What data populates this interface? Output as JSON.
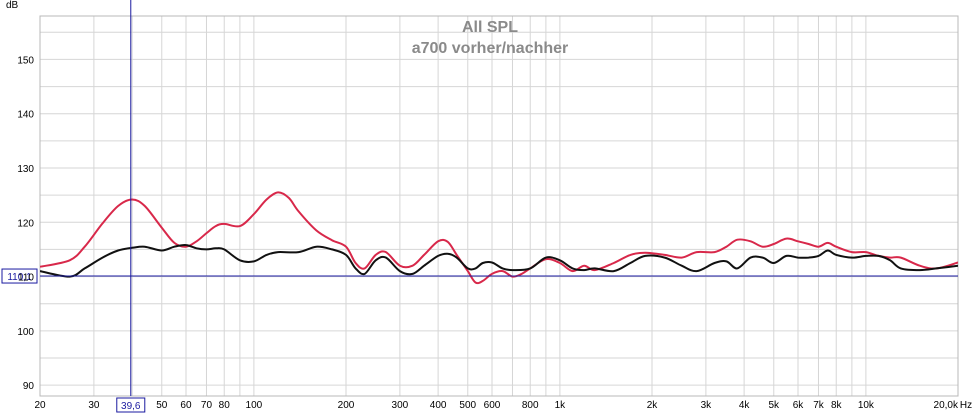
{
  "chart_data": {
    "type": "line",
    "title": "All SPL",
    "subtitle": "a700 vorher/nachher",
    "ylabel": "dB",
    "x_unit": "Hz",
    "x_scale": "log",
    "xlim": [
      20,
      20000
    ],
    "ylim": [
      88,
      158
    ],
    "grid": true,
    "legend": "none",
    "y_ticks": [
      90,
      100,
      110,
      120,
      130,
      140,
      150
    ],
    "x_ticks": [
      {
        "value": 20,
        "label": "20"
      },
      {
        "value": 30,
        "label": "30"
      },
      {
        "value": 50,
        "label": "50"
      },
      {
        "value": 60,
        "label": "60"
      },
      {
        "value": 70,
        "label": "70"
      },
      {
        "value": 80,
        "label": "80"
      },
      {
        "value": 100,
        "label": "100"
      },
      {
        "value": 200,
        "label": "200"
      },
      {
        "value": 300,
        "label": "300"
      },
      {
        "value": 400,
        "label": "400"
      },
      {
        "value": 500,
        "label": "500"
      },
      {
        "value": 600,
        "label": "600"
      },
      {
        "value": 800,
        "label": "800"
      },
      {
        "value": 1000,
        "label": "1k"
      },
      {
        "value": 2000,
        "label": "2k"
      },
      {
        "value": 3000,
        "label": "3k"
      },
      {
        "value": 4000,
        "label": "4k"
      },
      {
        "value": 5000,
        "label": "5k"
      },
      {
        "value": 6000,
        "label": "6k"
      },
      {
        "value": 7000,
        "label": "7k"
      },
      {
        "value": 8000,
        "label": "8k"
      },
      {
        "value": 10000,
        "label": "10k"
      },
      {
        "value": 20000,
        "label": "20,0k"
      }
    ],
    "cursor": {
      "x": 39.6,
      "x_label": "39,6",
      "y": 110.1,
      "y_label": "110,1",
      "color": "#1a1aa0"
    },
    "series": [
      {
        "color": "#d8284a",
        "x": [
          20,
          25,
          28,
          32,
          36,
          40,
          44,
          50,
          55,
          60,
          65,
          70,
          75,
          80,
          90,
          100,
          110,
          120,
          130,
          140,
          160,
          180,
          200,
          215,
          230,
          250,
          270,
          300,
          330,
          360,
          400,
          430,
          460,
          500,
          530,
          560,
          600,
          650,
          700,
          750,
          800,
          900,
          1000,
          1100,
          1200,
          1300,
          1500,
          1700,
          1900,
          2200,
          2500,
          2800,
          3200,
          3500,
          3800,
          4200,
          4600,
          5000,
          5500,
          6000,
          6500,
          7000,
          7500,
          8000,
          9000,
          10000,
          11000,
          12000,
          13000,
          15000,
          17000,
          20000
        ],
        "y": [
          111.8,
          113,
          115.5,
          119.8,
          123,
          124.2,
          123,
          119,
          116.2,
          115.5,
          116.5,
          118,
          119.3,
          119.7,
          119.3,
          121.5,
          124.2,
          125.5,
          124.5,
          122,
          118.5,
          116.7,
          115.5,
          112.5,
          111.5,
          114,
          114.5,
          112,
          112,
          114,
          116.5,
          116.4,
          114,
          111,
          108.9,
          109.2,
          110.5,
          111,
          110,
          110.5,
          111.5,
          113.2,
          112.5,
          111,
          112,
          111.2,
          112.5,
          114,
          114.4,
          114,
          113.5,
          114.5,
          114.5,
          115.5,
          116.8,
          116.5,
          115.5,
          116,
          117,
          116.5,
          116,
          115.5,
          116.2,
          115.5,
          114.5,
          114.5,
          113.8,
          113.5,
          113.5,
          112,
          111.5,
          112.6
        ]
      },
      {
        "color": "#111111",
        "x": [
          20,
          25,
          28,
          32,
          36,
          40,
          44,
          50,
          55,
          60,
          65,
          70,
          75,
          80,
          90,
          100,
          110,
          120,
          140,
          160,
          180,
          200,
          215,
          230,
          250,
          270,
          300,
          330,
          360,
          400,
          430,
          460,
          500,
          530,
          560,
          600,
          650,
          700,
          800,
          900,
          1000,
          1100,
          1200,
          1300,
          1500,
          1700,
          1900,
          2200,
          2500,
          2800,
          3200,
          3500,
          3800,
          4200,
          4600,
          5000,
          5500,
          6000,
          6500,
          7000,
          7500,
          8000,
          9000,
          10000,
          11000,
          12000,
          13000,
          15000,
          17000,
          20000
        ],
        "y": [
          111,
          110,
          111.5,
          113.5,
          114.8,
          115.3,
          115.5,
          114.8,
          115.5,
          115.8,
          115.2,
          115,
          115.2,
          115,
          113,
          112.8,
          114,
          114.5,
          114.5,
          115.5,
          115,
          114,
          111.5,
          110.5,
          113,
          113.5,
          111,
          110.5,
          112,
          113.8,
          114.2,
          113.5,
          111.5,
          111.5,
          112.5,
          112.6,
          111.5,
          111.2,
          111.5,
          113.5,
          113,
          111.5,
          111.2,
          111.5,
          111,
          112.5,
          113.8,
          113.5,
          112,
          111,
          112.5,
          112.8,
          111.5,
          113.5,
          113.5,
          112.5,
          113.8,
          113.5,
          113.5,
          113.8,
          114.8,
          114,
          113.5,
          113.8,
          113.8,
          113,
          111.5,
          111.2,
          111.5,
          112
        ]
      }
    ]
  }
}
